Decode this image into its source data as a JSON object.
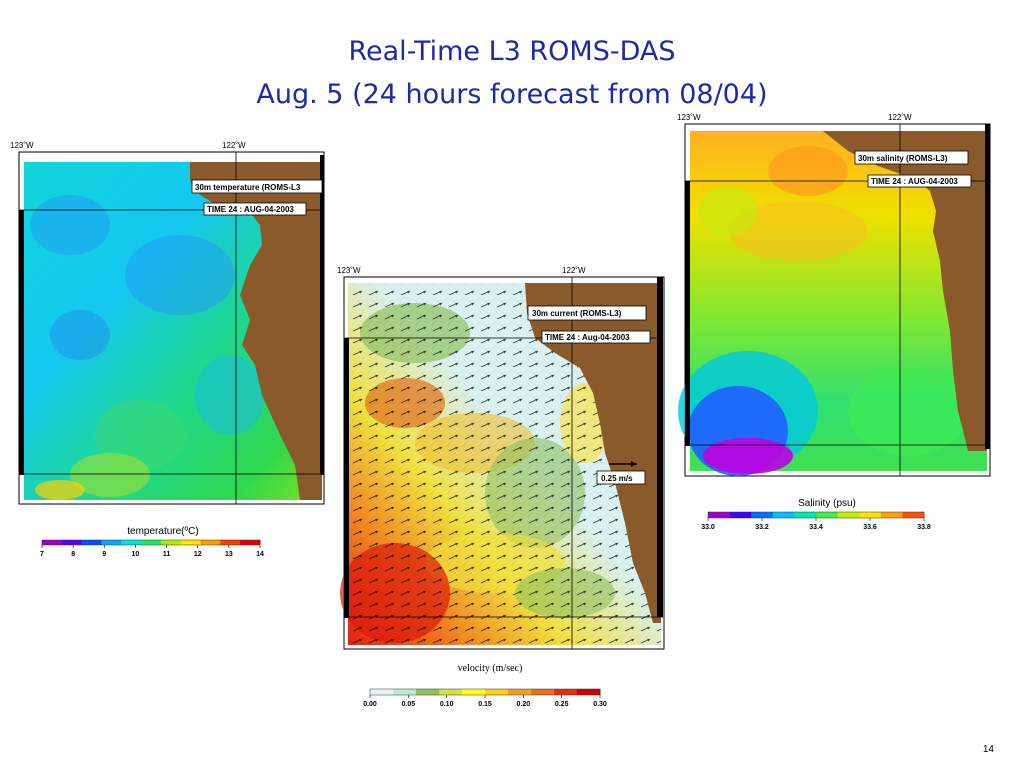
{
  "slide": {
    "title_line1": "Real-Time L3 ROMS-DAS",
    "title_line2": "Aug. 5 (24 hours forecast from 08/04)",
    "page_number": "14"
  },
  "temperature_panel": {
    "lon_left": "123˚W",
    "lon_right": "122˚W",
    "box_label": "30m temperature (ROMS-L3",
    "time_label": "TIME 24 : AUG-04-2003",
    "colorbar_title": "temperature(ºC)",
    "colorbar_ticks": [
      "7",
      "8",
      "9",
      "10",
      "11",
      "12",
      "13",
      "14"
    ],
    "colorbar_colors": [
      "#9b00c8",
      "#5a00ff",
      "#0050ff",
      "#00a8ff",
      "#00e6d2",
      "#22e85a",
      "#a8f000",
      "#ffe600",
      "#ff9a00",
      "#ff3a00",
      "#e60000"
    ]
  },
  "current_panel": {
    "lon_left": "123˚W",
    "lon_right": "122˚W",
    "box_label": "30m current (ROMS-L3)",
    "time_label": "TIME 24 :  Aug-04-2003",
    "scale_label": "0.25 m/s",
    "colorbar_title": "velocity (m/sec)",
    "colorbar_ticks": [
      "0.00",
      "0.05",
      "0.10",
      "0.15",
      "0.20",
      "0.25",
      "0.30"
    ],
    "colorbar_colors": [
      "#e6f5f5",
      "#c0e8d0",
      "#90c060",
      "#d4e040",
      "#ffff20",
      "#ffd020",
      "#f0a020",
      "#e87020",
      "#e03010",
      "#d00000"
    ]
  },
  "salinity_panel": {
    "lon_left": "123˚W",
    "lon_right": "122˚W",
    "box_label": "30m salinity (ROMS-L3)",
    "time_label": "TIME 24 : AUG-04-2003",
    "colorbar_title": "Salinity (psu)",
    "colorbar_ticks": [
      "33.0",
      "33.2",
      "33.4",
      "33.6",
      "33.8"
    ],
    "colorbar_colors": [
      "#a000d0",
      "#4000ff",
      "#0070ff",
      "#00c0ff",
      "#00e8b0",
      "#40f040",
      "#c0f000",
      "#ffe000",
      "#ffa000",
      "#ff5000"
    ]
  },
  "colors": {
    "title": "#1c2aa8",
    "land": "#8b5a2b"
  }
}
